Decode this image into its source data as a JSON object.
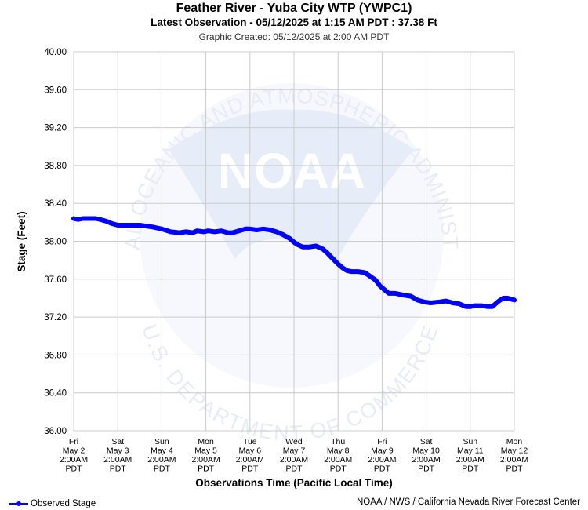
{
  "header": {
    "title": "Feather River - Yuba City WTP (YWPC1)",
    "latest": "Latest Observation - 05/12/2025 at 1:15 AM PDT : 37.38 Ft",
    "created": "Graphic Created: 05/12/2025 at 2:00 AM PDT"
  },
  "footer": {
    "legend_label": "Observed Stage",
    "credit": "NOAA / NWS / California Nevada River Forecast Center"
  },
  "watermark": {
    "logo_text": "NOAA",
    "ring_top": "NATIONAL OCEANIC AND ATMOSPHERIC ADMINISTRATION",
    "ring_bottom": "U.S. DEPARTMENT OF COMMERCE"
  },
  "colors": {
    "series": "#0000ff",
    "grid": "#cccccc",
    "watermark": "#eef2fb"
  },
  "chart_data": {
    "type": "line",
    "title": "Feather River - Yuba City WTP (YWPC1)",
    "xlabel": "Observations Time (Pacific Local Time)",
    "ylabel": "Stage (Feet)",
    "ylim": [
      36.0,
      40.0
    ],
    "yticks": [
      "36.00",
      "36.40",
      "36.80",
      "37.20",
      "37.60",
      "38.00",
      "38.40",
      "38.80",
      "39.20",
      "39.60",
      "40.00"
    ],
    "xlim": [
      0,
      10
    ],
    "x_unit": "days since Fri May 2 2:00 AM PDT",
    "xtick_labels": [
      [
        "Fri",
        "May 2",
        "2:00AM",
        "PDT"
      ],
      [
        "Sat",
        "May 3",
        "2:00AM",
        "PDT"
      ],
      [
        "Sun",
        "May 4",
        "2:00AM",
        "PDT"
      ],
      [
        "Mon",
        "May 5",
        "2:00AM",
        "PDT"
      ],
      [
        "Tue",
        "May 6",
        "2:00AM",
        "PDT"
      ],
      [
        "Wed",
        "May 7",
        "2:00AM",
        "PDT"
      ],
      [
        "Thu",
        "May 8",
        "2:00AM",
        "PDT"
      ],
      [
        "Fri",
        "May 9",
        "2:00AM",
        "PDT"
      ],
      [
        "Sat",
        "May 10",
        "2:00AM",
        "PDT"
      ],
      [
        "Sun",
        "May 11",
        "2:00AM",
        "PDT"
      ],
      [
        "Mon",
        "May 12",
        "2:00AM",
        "PDT"
      ]
    ],
    "grid": true,
    "series": [
      {
        "name": "Observed Stage",
        "color": "#0000ff",
        "x": [
          0.0,
          0.1,
          0.2,
          0.35,
          0.5,
          0.6,
          0.75,
          0.85,
          1.0,
          1.1,
          1.3,
          1.5,
          1.65,
          1.8,
          2.0,
          2.2,
          2.4,
          2.55,
          2.7,
          2.8,
          2.95,
          3.05,
          3.2,
          3.35,
          3.5,
          3.6,
          3.75,
          3.9,
          4.0,
          4.15,
          4.3,
          4.45,
          4.6,
          4.75,
          4.9,
          5.0,
          5.1,
          5.2,
          5.35,
          5.5,
          5.65,
          5.75,
          5.85,
          6.0,
          6.1,
          6.2,
          6.3,
          6.45,
          6.6,
          6.7,
          6.85,
          6.95,
          7.05,
          7.15,
          7.3,
          7.5,
          7.65,
          7.8,
          7.95,
          8.1,
          8.3,
          8.45,
          8.6,
          8.75,
          8.9,
          9.0,
          9.1,
          9.25,
          9.4,
          9.5,
          9.55,
          9.65,
          9.75,
          9.85,
          10.0
        ],
        "y": [
          38.24,
          38.23,
          38.24,
          38.24,
          38.24,
          38.23,
          38.21,
          38.19,
          38.17,
          38.17,
          38.17,
          38.17,
          38.16,
          38.15,
          38.13,
          38.1,
          38.09,
          38.1,
          38.09,
          38.11,
          38.1,
          38.11,
          38.1,
          38.11,
          38.09,
          38.09,
          38.11,
          38.13,
          38.13,
          38.12,
          38.13,
          38.12,
          38.1,
          38.07,
          38.03,
          37.99,
          37.96,
          37.94,
          37.94,
          37.95,
          37.92,
          37.88,
          37.83,
          37.76,
          37.72,
          37.69,
          37.68,
          37.68,
          37.67,
          37.64,
          37.59,
          37.53,
          37.49,
          37.45,
          37.45,
          37.43,
          37.42,
          37.38,
          37.36,
          37.35,
          37.36,
          37.37,
          37.35,
          37.34,
          37.31,
          37.31,
          37.32,
          37.32,
          37.31,
          37.31,
          37.33,
          37.37,
          37.4,
          37.4,
          37.38
        ]
      }
    ]
  }
}
